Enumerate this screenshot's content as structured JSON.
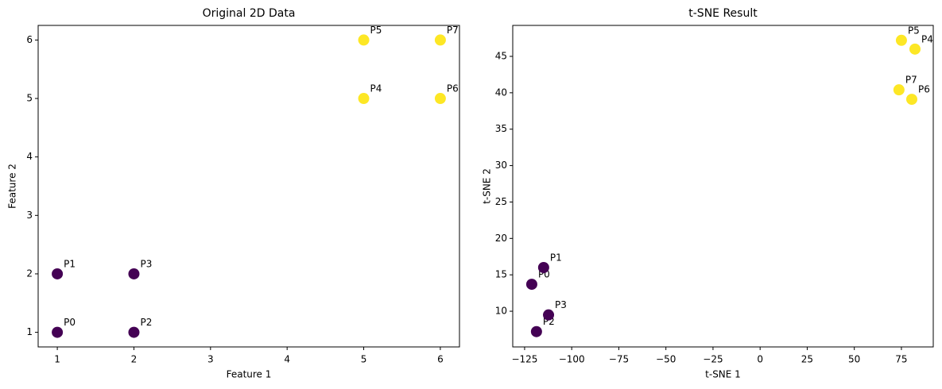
{
  "chart_data": [
    {
      "type": "scatter",
      "title": "Original 2D Data",
      "xlabel": "Feature 1",
      "ylabel": "Feature 2",
      "x": [
        1,
        1,
        2,
        2,
        5,
        5,
        6,
        6
      ],
      "values": [
        1,
        2,
        1,
        2,
        5,
        6,
        5,
        6
      ],
      "labels": [
        "P0",
        "P1",
        "P2",
        "P3",
        "P4",
        "P5",
        "P6",
        "P7"
      ],
      "colors": [
        "#440154",
        "#440154",
        "#440154",
        "#440154",
        "#fde725",
        "#fde725",
        "#fde725",
        "#fde725"
      ],
      "xlim": [
        0.75,
        6.25
      ],
      "ylim": [
        0.75,
        6.25
      ],
      "xticks": [
        1,
        2,
        3,
        4,
        5,
        6
      ],
      "yticks": [
        1,
        2,
        3,
        4,
        5,
        6
      ]
    },
    {
      "type": "scatter",
      "title": "t-SNE Result",
      "xlabel": "t-SNE 1",
      "ylabel": "t-SNE 2",
      "x": [
        -121.2,
        -114.9,
        -118.7,
        -112.3,
        82.2,
        75.0,
        80.5,
        73.7
      ],
      "values": [
        13.7,
        16.0,
        7.2,
        9.5,
        46.0,
        47.2,
        39.1,
        40.4
      ],
      "labels": [
        "P0",
        "P1",
        "P2",
        "P3",
        "P4",
        "P5",
        "P6",
        "P7"
      ],
      "colors": [
        "#440154",
        "#440154",
        "#440154",
        "#440154",
        "#fde725",
        "#fde725",
        "#fde725",
        "#fde725"
      ],
      "xlim": [
        -131.3,
        91.9
      ],
      "ylim": [
        5.1,
        49.25
      ],
      "xticks": [
        {
          "value": -125,
          "label": "−125"
        },
        {
          "value": -100,
          "label": "−100"
        },
        {
          "value": -75,
          "label": "−75"
        },
        {
          "value": -50,
          "label": "−50"
        },
        {
          "value": -25,
          "label": "−25"
        },
        0,
        25,
        50,
        75
      ],
      "yticks": [
        10,
        15,
        20,
        25,
        30,
        35,
        40,
        45
      ]
    }
  ]
}
